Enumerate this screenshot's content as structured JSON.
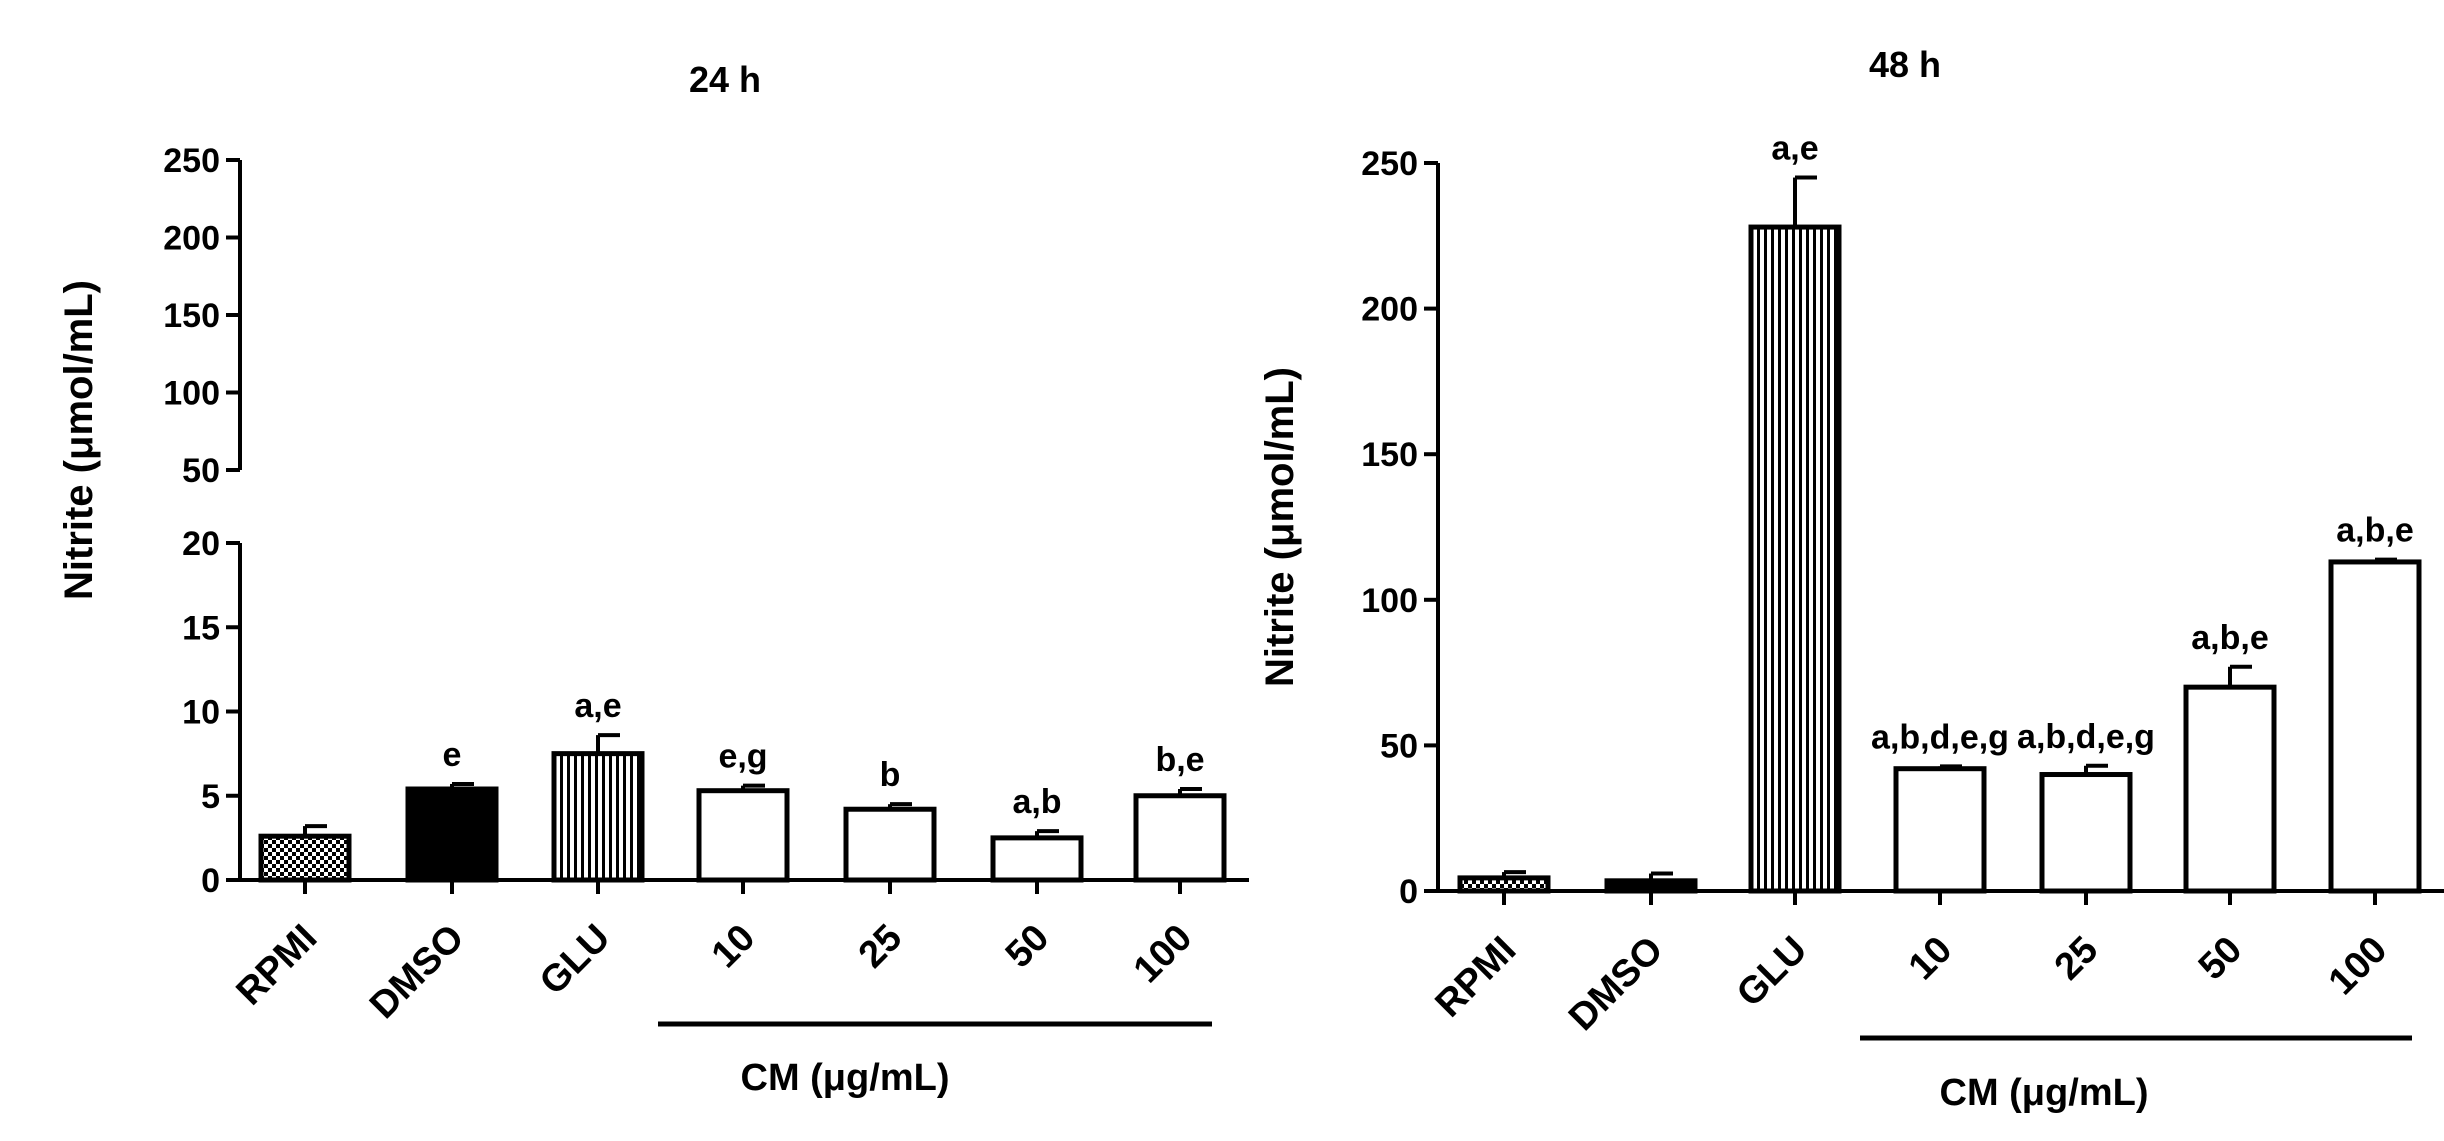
{
  "chart_data": [
    {
      "type": "bar",
      "title": "24 h",
      "ylabel": "Nitrite (μmol/mL)",
      "xlabel": "",
      "group_label": "CM (μg/mL)",
      "group_categories": [
        "10",
        "25",
        "50",
        "100"
      ],
      "categories": [
        "RPMI",
        "DMSO",
        "GLU",
        "10",
        "25",
        "50",
        "100"
      ],
      "values": [
        2.6,
        5.4,
        7.5,
        5.3,
        4.2,
        2.5,
        5.0
      ],
      "errors": [
        0.6,
        0.3,
        1.1,
        0.3,
        0.3,
        0.4,
        0.4
      ],
      "significance": [
        "",
        "e",
        "a,e",
        "e,g",
        "b",
        "a,b",
        "b,e"
      ],
      "fills": [
        "checker",
        "solid",
        "vstripe",
        "open",
        "open",
        "open",
        "open"
      ],
      "y_axis_broken": true,
      "ylim_lower": [
        0,
        20
      ],
      "ylim_upper": [
        50,
        250
      ],
      "yticks_lower": [
        "0",
        "5",
        "10",
        "15",
        "20"
      ],
      "yticks_upper": [
        "50",
        "100",
        "150",
        "200",
        "250"
      ],
      "grid": false,
      "legend": "none"
    },
    {
      "type": "bar",
      "title": "48 h",
      "ylabel": "Nitrite (μmol/mL)",
      "xlabel": "",
      "group_label": "CM (μg/mL)",
      "group_categories": [
        "10",
        "25",
        "50",
        "100"
      ],
      "categories": [
        "RPMI",
        "DMSO",
        "GLU",
        "10",
        "25",
        "50",
        "100"
      ],
      "values": [
        4.5,
        3.5,
        228,
        42,
        40,
        70,
        113
      ],
      "errors": [
        2,
        2.5,
        17,
        0.8,
        3,
        7,
        0.8
      ],
      "significance": [
        "",
        "",
        "a,e",
        "a,b,d,e,g",
        "a,b,d,e,g",
        "a,b,e",
        "a,b,e"
      ],
      "fills": [
        "checker",
        "solid",
        "vstripe",
        "open",
        "open",
        "open",
        "open"
      ],
      "ylim": [
        0,
        250
      ],
      "yticks": [
        "0",
        "50",
        "100",
        "150",
        "200",
        "250"
      ],
      "grid": false,
      "legend": "none"
    }
  ]
}
